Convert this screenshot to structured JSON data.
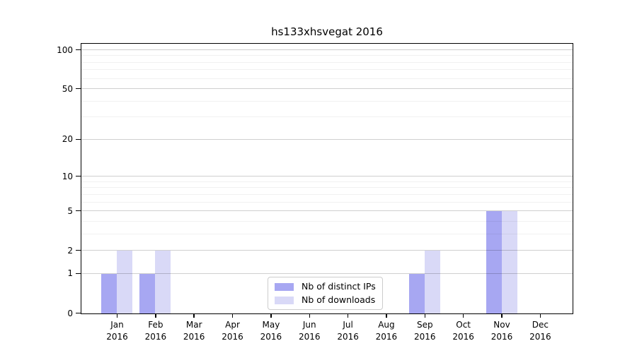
{
  "title": "hs133xhsvegat 2016",
  "chart_data": {
    "type": "bar",
    "title": "hs133xhsvegat 2016",
    "x_categories": [
      "Jan",
      "Feb",
      "Mar",
      "Apr",
      "May",
      "Jun",
      "Jul",
      "Aug",
      "Sep",
      "Oct",
      "Nov",
      "Dec"
    ],
    "x_year": "2016",
    "series": [
      {
        "name": "Nb of distinct IPs",
        "color": "#a7a7f2",
        "values": [
          1,
          1,
          0,
          0,
          0,
          0,
          0,
          0,
          1,
          0,
          5,
          0
        ]
      },
      {
        "name": "Nb of downloads",
        "color": "#d9d9f7",
        "values": [
          2,
          2,
          0,
          0,
          0,
          0,
          0,
          0,
          2,
          0,
          5,
          0
        ]
      }
    ],
    "yscale": "log1p",
    "ylim": [
      0,
      113
    ],
    "y_tick_labels": [
      100,
      50,
      20,
      10,
      5,
      2,
      1,
      0
    ],
    "y_minor_gridlines": [
      3,
      4,
      6,
      7,
      8,
      9,
      30,
      40,
      60,
      70,
      80,
      90
    ],
    "grid": true,
    "legend_position": "lower center inside axes",
    "bar_layout": "paired side-by-side, IPs left of tick, downloads right of tick"
  }
}
